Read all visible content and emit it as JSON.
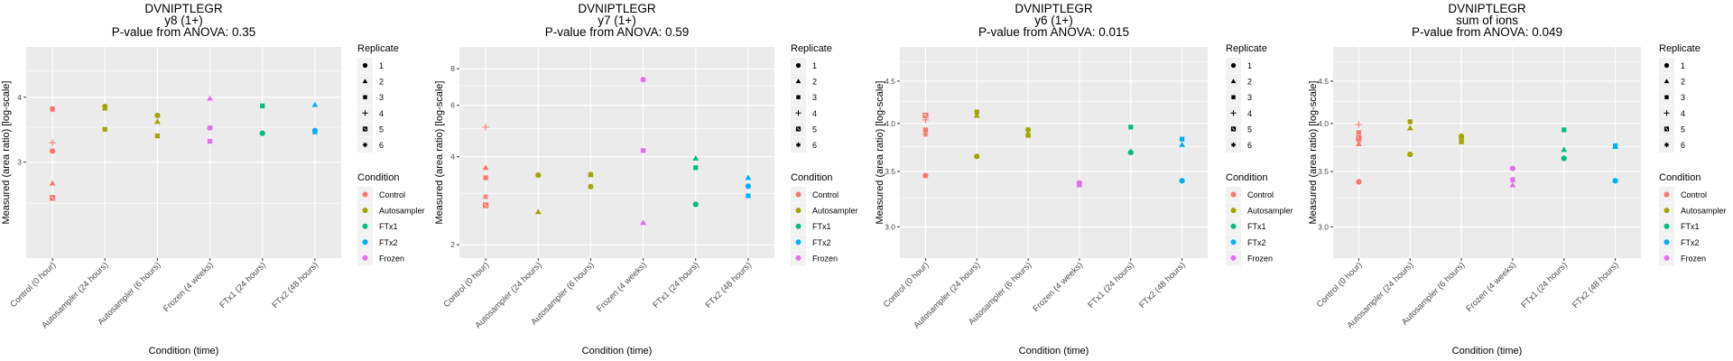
{
  "chart_data": [
    {
      "type": "scatter",
      "title": "DVNIPTLEGR",
      "subtitle": "y8 (1+)",
      "pvalue_label": "P-value from ANOVA: 0.35",
      "xlabel": "Condition (time)",
      "ylabel": "Measured (area ratio) [log-scale]",
      "yscale": "log",
      "ylim": [
        1.96,
        5.0
      ],
      "yticks": [
        3,
        4
      ],
      "ytick_labels": [
        "3",
        "4"
      ],
      "yminor": [
        2.5,
        3.5,
        4.5
      ],
      "grid": true,
      "categories": [
        "Control (0 hour)",
        "Autosampler (24 hours)",
        "Autosampler (6 hours)",
        "Frozen (4 weeks)",
        "FTx1 (24 hours)",
        "FTx2 (48 hours)"
      ],
      "points": [
        {
          "x": 0,
          "y": 3.15,
          "replicate": "1",
          "condition": "Control"
        },
        {
          "x": 0,
          "y": 2.73,
          "replicate": "2",
          "condition": "Control"
        },
        {
          "x": 0,
          "y": 3.8,
          "replicate": "3",
          "condition": "Control"
        },
        {
          "x": 0,
          "y": 3.27,
          "replicate": "4",
          "condition": "Control"
        },
        {
          "x": 0,
          "y": 2.56,
          "replicate": "5",
          "condition": "Control"
        },
        {
          "x": 0,
          "y": 3.79,
          "replicate": "6",
          "condition": "Control"
        },
        {
          "x": 1,
          "y": 3.84,
          "replicate": "1",
          "condition": "Autosampler"
        },
        {
          "x": 1,
          "y": 3.81,
          "replicate": "2",
          "condition": "Autosampler"
        },
        {
          "x": 1,
          "y": 3.47,
          "replicate": "3",
          "condition": "Autosampler"
        },
        {
          "x": 2,
          "y": 3.69,
          "replicate": "1",
          "condition": "Autosampler"
        },
        {
          "x": 2,
          "y": 3.59,
          "replicate": "2",
          "condition": "Autosampler"
        },
        {
          "x": 2,
          "y": 3.37,
          "replicate": "3",
          "condition": "Autosampler"
        },
        {
          "x": 3,
          "y": 3.49,
          "replicate": "1",
          "condition": "Frozen"
        },
        {
          "x": 3,
          "y": 3.98,
          "replicate": "2",
          "condition": "Frozen"
        },
        {
          "x": 3,
          "y": 3.29,
          "replicate": "3",
          "condition": "Frozen"
        },
        {
          "x": 4,
          "y": 3.41,
          "replicate": "1",
          "condition": "FTx1"
        },
        {
          "x": 4,
          "y": 3.85,
          "replicate": "3",
          "condition": "FTx1"
        },
        {
          "x": 5,
          "y": 3.45,
          "replicate": "1",
          "condition": "FTx2"
        },
        {
          "x": 5,
          "y": 3.87,
          "replicate": "2",
          "condition": "FTx2"
        },
        {
          "x": 5,
          "y": 3.43,
          "replicate": "3",
          "condition": "FTx2"
        }
      ]
    },
    {
      "type": "scatter",
      "title": "DVNIPTLEGR",
      "subtitle": "y7 (1+)",
      "pvalue_label": "P-value from ANOVA: 0.59",
      "xlabel": "Condition (time)",
      "ylabel": "Measured (area ratio) [log-scale]",
      "yscale": "log",
      "ylim": [
        1.8,
        9.5
      ],
      "yticks": [
        2,
        4,
        6,
        8
      ],
      "ytick_labels": [
        "2",
        "4",
        "6",
        "8"
      ],
      "yminor": [
        3,
        5,
        7
      ],
      "grid": true,
      "categories": [
        "Control (0 hour)",
        "Autosampler (24 hours)",
        "Autosampler (6 hours)",
        "Frozen (4 weeks)",
        "FTx1 (24 hours)",
        "FTx2 (48 hours)"
      ],
      "points": [
        {
          "x": 0,
          "y": 3.67,
          "replicate": "2",
          "condition": "Control"
        },
        {
          "x": 0,
          "y": 3.39,
          "replicate": "3",
          "condition": "Control"
        },
        {
          "x": 0,
          "y": 5.05,
          "replicate": "4",
          "condition": "Control"
        },
        {
          "x": 0,
          "y": 2.73,
          "replicate": "5",
          "condition": "Control"
        },
        {
          "x": 0,
          "y": 2.92,
          "replicate": "6",
          "condition": "Control"
        },
        {
          "x": 1,
          "y": 3.46,
          "replicate": "1",
          "condition": "Autosampler"
        },
        {
          "x": 1,
          "y": 2.59,
          "replicate": "2",
          "condition": "Autosampler"
        },
        {
          "x": 2,
          "y": 3.16,
          "replicate": "1",
          "condition": "Autosampler"
        },
        {
          "x": 2,
          "y": 3.49,
          "replicate": "2",
          "condition": "Autosampler"
        },
        {
          "x": 2,
          "y": 3.47,
          "replicate": "3",
          "condition": "Autosampler"
        },
        {
          "x": 3,
          "y": 7.34,
          "replicate": "1",
          "condition": "Frozen"
        },
        {
          "x": 3,
          "y": 2.38,
          "replicate": "2",
          "condition": "Frozen"
        },
        {
          "x": 3,
          "y": 4.2,
          "replicate": "3",
          "condition": "Frozen"
        },
        {
          "x": 4,
          "y": 2.75,
          "replicate": "1",
          "condition": "FTx1"
        },
        {
          "x": 4,
          "y": 3.95,
          "replicate": "2",
          "condition": "FTx1"
        },
        {
          "x": 4,
          "y": 3.67,
          "replicate": "3",
          "condition": "FTx1"
        },
        {
          "x": 5,
          "y": 3.17,
          "replicate": "1",
          "condition": "FTx2"
        },
        {
          "x": 5,
          "y": 3.39,
          "replicate": "2",
          "condition": "FTx2"
        },
        {
          "x": 5,
          "y": 2.94,
          "replicate": "3",
          "condition": "FTx2"
        }
      ]
    },
    {
      "type": "scatter",
      "title": "DVNIPTLEGR",
      "subtitle": "y6 (1+)",
      "pvalue_label": "P-value from ANOVA: 0.015",
      "xlabel": "Condition (time)",
      "ylabel": "Measured (area ratio) [log-scale]",
      "yscale": "log",
      "ylim": [
        2.75,
        4.95
      ],
      "yticks": [
        3.0,
        3.5,
        4.0,
        4.5
      ],
      "ytick_labels": [
        "3.0",
        "3.5",
        "4.0",
        "4.5"
      ],
      "yminor": [
        2.75,
        3.25,
        3.75,
        4.25,
        4.75
      ],
      "grid": true,
      "categories": [
        "Control (0 hour)",
        "Autosampler (24 hours)",
        "Autosampler (6 hours)",
        "Frozen (4 weeks)",
        "FTx1 (24 hours)",
        "FTx2 (48 hours)"
      ],
      "points": [
        {
          "x": 0,
          "y": 3.46,
          "replicate": "1",
          "condition": "Control"
        },
        {
          "x": 0,
          "y": 3.93,
          "replicate": "3",
          "condition": "Control"
        },
        {
          "x": 0,
          "y": 4.04,
          "replicate": "4",
          "condition": "Control"
        },
        {
          "x": 0,
          "y": 4.09,
          "replicate": "5",
          "condition": "Control"
        },
        {
          "x": 0,
          "y": 3.88,
          "replicate": "6",
          "condition": "Control"
        },
        {
          "x": 1,
          "y": 3.65,
          "replicate": "1",
          "condition": "Autosampler"
        },
        {
          "x": 1,
          "y": 4.09,
          "replicate": "2",
          "condition": "Autosampler"
        },
        {
          "x": 1,
          "y": 4.13,
          "replicate": "3",
          "condition": "Autosampler"
        },
        {
          "x": 2,
          "y": 3.93,
          "replicate": "1",
          "condition": "Autosampler"
        },
        {
          "x": 2,
          "y": 3.89,
          "replicate": "2",
          "condition": "Autosampler"
        },
        {
          "x": 2,
          "y": 3.87,
          "replicate": "3",
          "condition": "Autosampler"
        },
        {
          "x": 3,
          "y": 3.39,
          "replicate": "1",
          "condition": "Frozen"
        },
        {
          "x": 3,
          "y": 3.37,
          "replicate": "2",
          "condition": "Frozen"
        },
        {
          "x": 3,
          "y": 3.38,
          "replicate": "3",
          "condition": "Frozen"
        },
        {
          "x": 4,
          "y": 3.69,
          "replicate": "1",
          "condition": "FTx1"
        },
        {
          "x": 4,
          "y": 3.7,
          "replicate": "2",
          "condition": "FTx1"
        },
        {
          "x": 4,
          "y": 3.96,
          "replicate": "3",
          "condition": "FTx1"
        },
        {
          "x": 5,
          "y": 3.41,
          "replicate": "1",
          "condition": "FTx2"
        },
        {
          "x": 5,
          "y": 3.77,
          "replicate": "2",
          "condition": "FTx2"
        },
        {
          "x": 5,
          "y": 3.83,
          "replicate": "3",
          "condition": "FTx2"
        }
      ]
    },
    {
      "type": "scatter",
      "title": "DVNIPTLEGR",
      "subtitle": "sum of ions",
      "pvalue_label": "P-value from ANOVA: 0.049",
      "xlabel": "Condition (time)",
      "ylabel": "Measured (area ratio) [log-scale]",
      "yscale": "log",
      "ylim": [
        2.75,
        4.95
      ],
      "yticks": [
        3.0,
        3.5,
        4.0,
        4.5
      ],
      "ytick_labels": [
        "3.0",
        "3.5",
        "4.0",
        "4.5"
      ],
      "yminor": [
        2.75,
        3.25,
        3.75,
        4.25,
        4.75
      ],
      "grid": true,
      "categories": [
        "Control (0 hour)",
        "Autosampler (24 hours)",
        "Autosampler (6 hours)",
        "Frozen (4 weeks)",
        "FTx1 (24 hours)",
        "FTx2 (48 hours)"
      ],
      "points": [
        {
          "x": 0,
          "y": 3.4,
          "replicate": "1",
          "condition": "Control"
        },
        {
          "x": 0,
          "y": 3.78,
          "replicate": "2",
          "condition": "Control"
        },
        {
          "x": 0,
          "y": 3.9,
          "replicate": "3",
          "condition": "Control"
        },
        {
          "x": 0,
          "y": 3.99,
          "replicate": "4",
          "condition": "Control"
        },
        {
          "x": 0,
          "y": 3.84,
          "replicate": "5",
          "condition": "Control"
        },
        {
          "x": 0,
          "y": 3.82,
          "replicate": "6",
          "condition": "Control"
        },
        {
          "x": 1,
          "y": 3.67,
          "replicate": "1",
          "condition": "Autosampler"
        },
        {
          "x": 1,
          "y": 3.95,
          "replicate": "2",
          "condition": "Autosampler"
        },
        {
          "x": 1,
          "y": 4.02,
          "replicate": "3",
          "condition": "Autosampler"
        },
        {
          "x": 2,
          "y": 3.86,
          "replicate": "1",
          "condition": "Autosampler"
        },
        {
          "x": 2,
          "y": 3.85,
          "replicate": "2",
          "condition": "Autosampler"
        },
        {
          "x": 2,
          "y": 3.8,
          "replicate": "3",
          "condition": "Autosampler"
        },
        {
          "x": 3,
          "y": 3.53,
          "replicate": "1",
          "condition": "Frozen"
        },
        {
          "x": 3,
          "y": 3.37,
          "replicate": "2",
          "condition": "Frozen"
        },
        {
          "x": 3,
          "y": 3.42,
          "replicate": "3",
          "condition": "Frozen"
        },
        {
          "x": 4,
          "y": 3.63,
          "replicate": "1",
          "condition": "FTx1"
        },
        {
          "x": 4,
          "y": 3.72,
          "replicate": "2",
          "condition": "FTx1"
        },
        {
          "x": 4,
          "y": 3.93,
          "replicate": "3",
          "condition": "FTx1"
        },
        {
          "x": 5,
          "y": 3.41,
          "replicate": "1",
          "condition": "FTx2"
        },
        {
          "x": 5,
          "y": 3.75,
          "replicate": "2",
          "condition": "FTx2"
        },
        {
          "x": 5,
          "y": 3.76,
          "replicate": "3",
          "condition": "FTx2"
        }
      ]
    }
  ],
  "legend": {
    "replicate_title": "Replicate",
    "replicates": [
      {
        "label": "1",
        "shape": "circle"
      },
      {
        "label": "2",
        "shape": "triangle"
      },
      {
        "label": "3",
        "shape": "square"
      },
      {
        "label": "4",
        "shape": "plus"
      },
      {
        "label": "5",
        "shape": "square-cross"
      },
      {
        "label": "6",
        "shape": "asterisk"
      }
    ],
    "condition_title": "Condition",
    "conditions": [
      {
        "label": "Control",
        "color": "#F8766D"
      },
      {
        "label": "Autosampler",
        "color": "#A3A500"
      },
      {
        "label": "FTx1",
        "color": "#00BF7D"
      },
      {
        "label": "FTx2",
        "color": "#00B0F6"
      },
      {
        "label": "Frozen",
        "color": "#E76BF3"
      }
    ]
  }
}
